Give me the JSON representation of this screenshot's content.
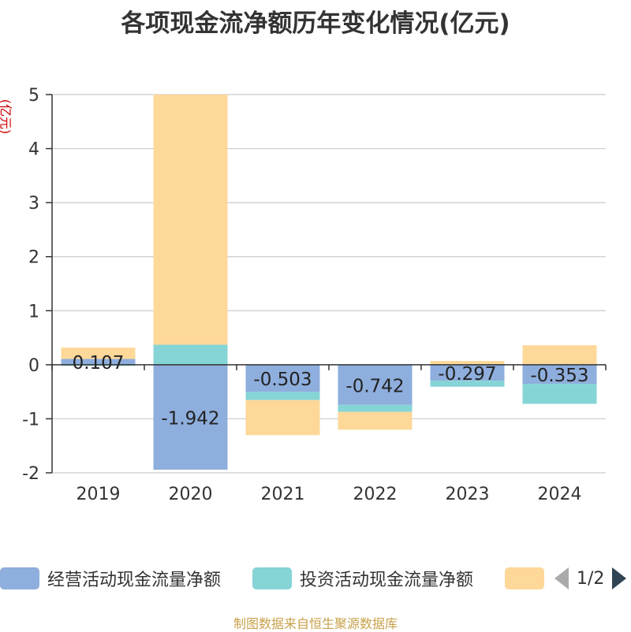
{
  "title": "各项现金流净额历年变化情况(亿元)",
  "unit_label": "(亿元)",
  "source": "制图数据来自恒生聚源数据库",
  "legend": {
    "items": [
      {
        "label": "经营活动现金流量净额",
        "color": "#8eaedd"
      },
      {
        "label": "投资活动现金流量净额",
        "color": "#85d4d6"
      },
      {
        "label": "",
        "color": "#fdd899"
      }
    ],
    "page_indicator": "1/2"
  },
  "chart_data": {
    "type": "bar",
    "stacked": true,
    "categories": [
      "2019",
      "2020",
      "2021",
      "2022",
      "2023",
      "2024"
    ],
    "series": [
      {
        "name": "经营活动现金流量净额",
        "color": "#8eaedd",
        "values": [
          0.107,
          -1.942,
          -0.503,
          -0.742,
          -0.297,
          -0.353
        ]
      },
      {
        "name": "投资活动现金流量净额",
        "color": "#85d4d6",
        "values": [
          -0.02,
          0.37,
          -0.15,
          -0.13,
          -0.11,
          -0.37
        ]
      },
      {
        "name": "",
        "color": "#fdd899",
        "values": [
          0.21,
          4.63,
          -0.65,
          -0.33,
          0.07,
          0.36
        ]
      }
    ],
    "data_labels": [
      "0.107",
      "-1.942",
      "-0.503",
      "-0.742",
      "-0.297",
      "-0.353"
    ],
    "ylim": [
      -2,
      5
    ],
    "yticks": [
      -2,
      -1,
      0,
      1,
      2,
      3,
      4,
      5
    ],
    "grid": true,
    "legend_position": "bottom"
  }
}
